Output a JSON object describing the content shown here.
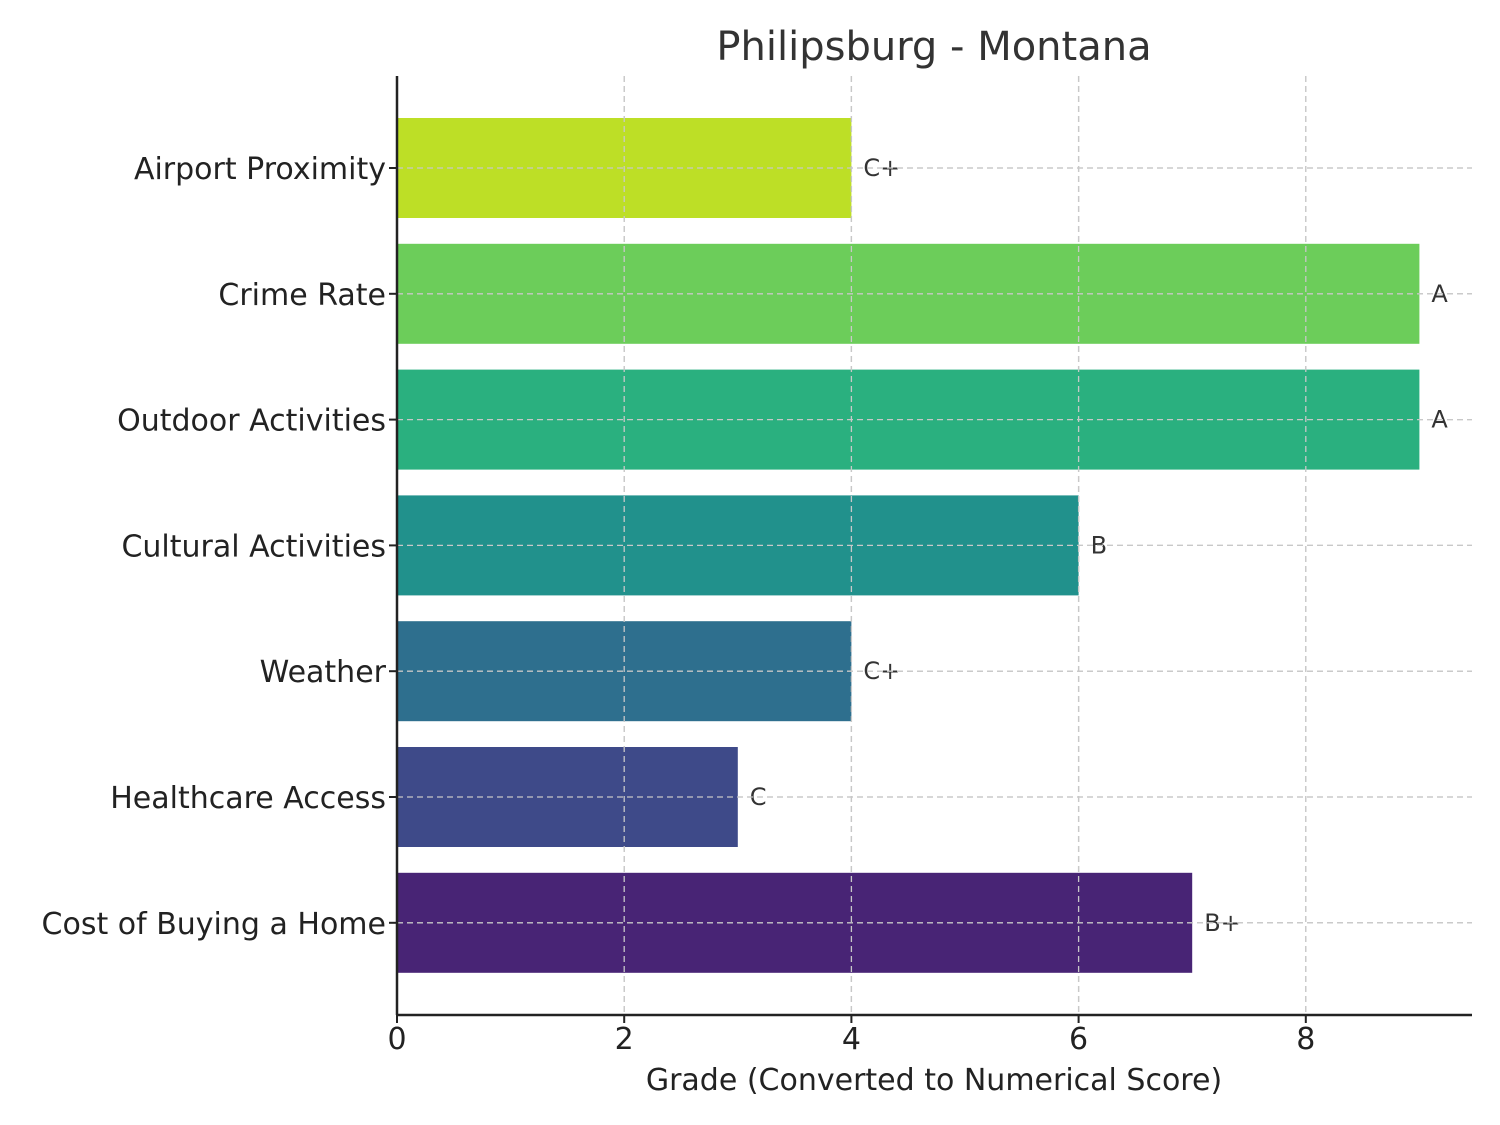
{
  "chart_data": {
    "type": "bar",
    "orientation": "horizontal",
    "title": "Philipsburg - Montana",
    "xlabel": "Grade (Converted to Numerical Score)",
    "ylabel": "",
    "xlim": [
      0,
      9.45
    ],
    "xticks": [
      0,
      2,
      4,
      6,
      8
    ],
    "grid": true,
    "categories": [
      "Airport Proximity",
      "Crime Rate",
      "Outdoor Activities",
      "Cultural Activities",
      "Weather",
      "Healthcare Access",
      "Cost of Buying a Home"
    ],
    "values": [
      4,
      9,
      9,
      6,
      4,
      3,
      7
    ],
    "data_labels": [
      "C+",
      "A",
      "A",
      "B",
      "C+",
      "C",
      "B+"
    ],
    "colors": [
      "#bddf26",
      "#6ccd5a",
      "#2ab07f",
      "#21918c",
      "#2e6f8e",
      "#3e4a89",
      "#482475"
    ]
  }
}
